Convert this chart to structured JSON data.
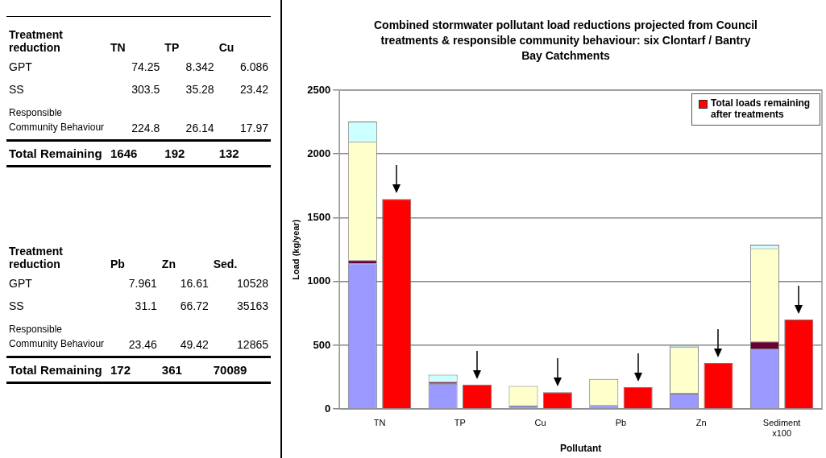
{
  "chart_data": [
    {
      "type": "other",
      "ylabel": "Treatment reduction",
      "categories": [
        "TN",
        "TP",
        "Cu"
      ],
      "y_categories": [
        "GPT",
        "SS",
        "Responsible Community Behaviour",
        "Total Remaining"
      ],
      "cell_labels": [
        [
          "74.25",
          "8.342",
          "6.086"
        ],
        [
          "303.5",
          "35.28",
          "23.42"
        ],
        [
          "224.8",
          "26.14",
          "17.97"
        ],
        [
          "1646",
          "192",
          "132"
        ]
      ]
    },
    {
      "type": "other",
      "ylabel": "Treatment reduction",
      "categories": [
        "Pb",
        "Zn",
        "Sed."
      ],
      "y_categories": [
        "GPT",
        "SS",
        "Responsible Community Behaviour",
        "Total Remaining"
      ],
      "cell_labels": [
        [
          "7.961",
          "16.61",
          "10528"
        ],
        [
          "31.1",
          "66.72",
          "35163"
        ],
        [
          "23.46",
          "49.42",
          "12865"
        ],
        [
          "172",
          "361",
          "70089"
        ]
      ]
    },
    {
      "type": "bar",
      "title": "Combined stormwater pollutant load reductions projected from Council treatments & responsible community behaviour: six Clontarf / Bantry Bay Catchments",
      "xlabel": "Pollutant",
      "ylabel": "Load (kg/year)",
      "categories": [
        "TN",
        "TP",
        "Cu",
        "Pb",
        "Zn",
        "Sediment\nx100"
      ],
      "series": [
        {
          "color": "#9999ff",
          "base": [
            0,
            0,
            0,
            0,
            0,
            0
          ],
          "values": [
            1141,
            198,
            26,
            31,
            121,
            474
          ]
        },
        {
          "color": "#660033",
          "base": [
            1141,
            198,
            null,
            null,
            121,
            474
          ],
          "values": [
            26,
            16,
            null,
            null,
            5,
            55
          ]
        },
        {
          "color": "#ffffcc",
          "base": [
            1167,
            null,
            26,
            31,
            126,
            529
          ],
          "values": [
            931,
            null,
            155,
            205,
            359,
            731
          ]
        },
        {
          "color": "#ccffff",
          "base": [
            2098,
            214,
            null,
            null,
            485,
            1260
          ],
          "values": [
            156,
            55,
            null,
            null,
            11,
            29
          ]
        },
        {
          "name": "Total loads remaining after treatments",
          "color": "#ff0000",
          "values": [
            1646,
            192,
            132,
            172,
            361,
            701
          ]
        }
      ],
      "ylim": [
        0,
        2500
      ],
      "yticks": [
        0,
        500,
        1000,
        1500,
        2000,
        2500
      ],
      "grid": "y",
      "legend": "top right"
    }
  ]
}
